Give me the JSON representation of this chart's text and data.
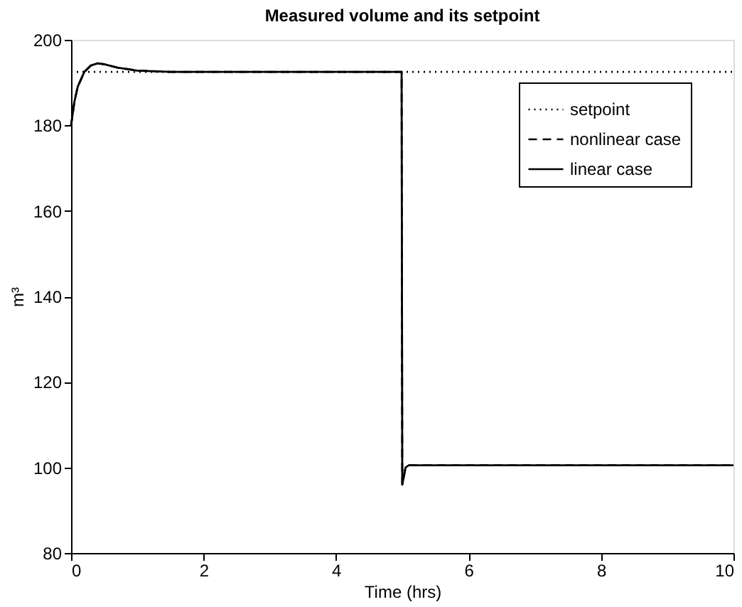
{
  "chart_data": {
    "type": "line",
    "title": "Measured volume and its setpoint",
    "xlabel": "Time (hrs)",
    "ylabel": "m³",
    "xlim": [
      0,
      10
    ],
    "xticks": [
      0,
      2,
      4,
      6,
      8,
      10
    ],
    "ylim": [
      80,
      200
    ],
    "yticks": [
      80,
      100,
      120,
      140,
      160,
      180,
      200
    ],
    "grid": false,
    "legend": "top right",
    "series": [
      {
        "name": "setpoint",
        "color": "#000000",
        "line_style": "dotted",
        "x": [
          0,
          10
        ],
        "values": [
          192.5,
          192.5
        ]
      },
      {
        "name": "nonlinear case",
        "color": "#000000",
        "line_style": "dashed",
        "x": [
          0,
          0.05,
          0.1,
          0.2,
          0.3,
          0.4,
          0.5,
          0.7,
          1.0,
          1.5,
          2,
          3,
          4,
          4.99,
          5.0,
          5.05,
          5.1,
          6,
          8,
          10
        ],
        "values": [
          180,
          185.5,
          189,
          192.5,
          194,
          194.5,
          194.3,
          193.5,
          192.8,
          192.5,
          192.5,
          192.5,
          192.5,
          192.5,
          96,
          100,
          100.5,
          100.5,
          100.5,
          100.5
        ]
      },
      {
        "name": "linear case",
        "color": "#000000",
        "line_style": "solid",
        "x": [
          0,
          0.05,
          0.1,
          0.2,
          0.3,
          0.4,
          0.5,
          0.7,
          1.0,
          1.5,
          2,
          3,
          4,
          4.99,
          5.0,
          5.05,
          5.1,
          6,
          8,
          10
        ],
        "values": [
          180,
          185.5,
          189,
          192.5,
          194,
          194.5,
          194.3,
          193.5,
          192.8,
          192.5,
          192.5,
          192.5,
          192.5,
          192.5,
          96,
          100,
          100.5,
          100.5,
          100.5,
          100.5
        ]
      }
    ]
  }
}
